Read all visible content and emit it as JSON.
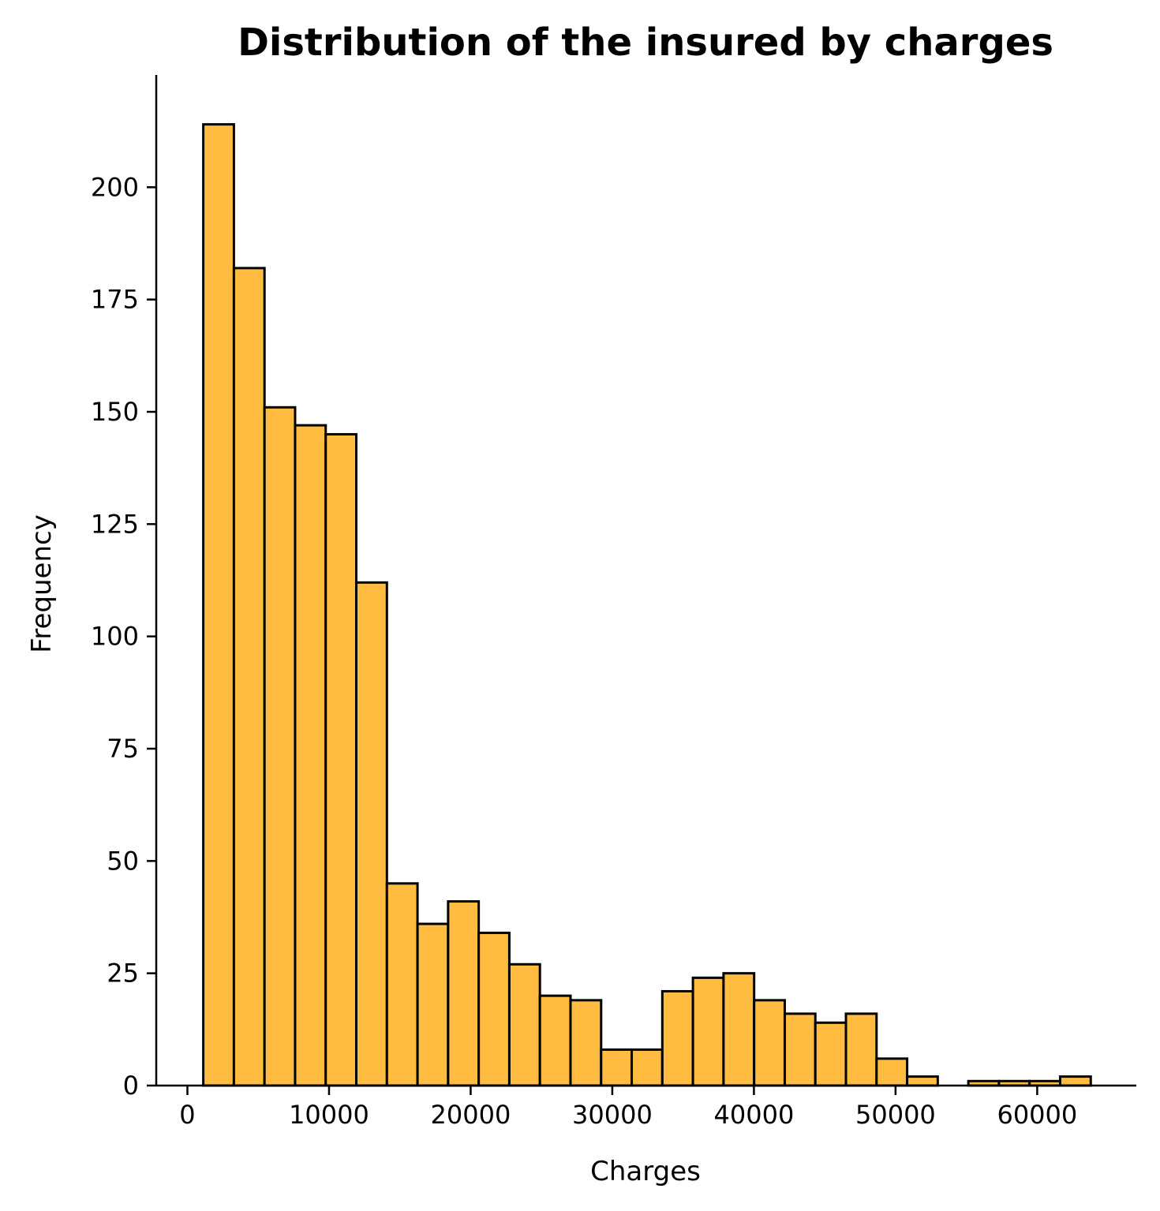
{
  "chart_data": {
    "type": "bar",
    "title": "Distribution of the insured by charges",
    "xlabel": "Charges",
    "ylabel": "Frequency",
    "xlim": [
      -2200,
      67000
    ],
    "ylim": [
      0,
      225
    ],
    "x_ticks": [
      0,
      10000,
      20000,
      30000,
      40000,
      50000,
      60000
    ],
    "x_tick_labels": [
      "0",
      "10000",
      "20000",
      "30000",
      "40000",
      "50000",
      "60000"
    ],
    "y_ticks": [
      0,
      25,
      50,
      75,
      100,
      125,
      150,
      175,
      200
    ],
    "y_tick_labels": [
      "0",
      "25",
      "50",
      "75",
      "100",
      "125",
      "150",
      "175",
      "200"
    ],
    "bin_start": 1121.87,
    "bin_width": 2160.72,
    "values": [
      214,
      182,
      151,
      147,
      145,
      112,
      45,
      36,
      41,
      34,
      27,
      20,
      19,
      8,
      8,
      21,
      24,
      25,
      19,
      16,
      14,
      16,
      6,
      2,
      0,
      1,
      1,
      1,
      2
    ],
    "bar_color": "#FFBC40",
    "edge_color": "#000000",
    "grid": false,
    "legend": "none"
  }
}
